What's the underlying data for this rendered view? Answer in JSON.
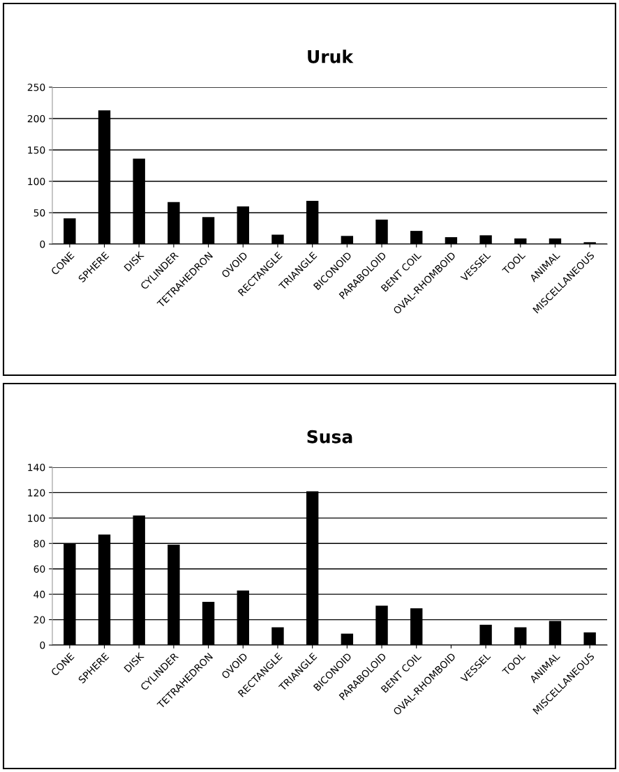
{
  "chart_data": [
    {
      "type": "bar",
      "title": "Uruk",
      "categories": [
        "CONE",
        "SPHERE",
        "DISK",
        "CYLINDER",
        "TETRAHEDRON",
        "OVOID",
        "RECTANGLE",
        "TRIANGLE",
        "BICONOID",
        "PARABOLOID",
        "BENT COIL",
        "OVAL-RHOMBOID",
        "VESSEL",
        "TOOL",
        "ANIMAL",
        "MISCELLANEOUS"
      ],
      "values": [
        41,
        213,
        136,
        67,
        43,
        60,
        15,
        69,
        13,
        39,
        21,
        11,
        14,
        9,
        9,
        3
      ],
      "color": "#000000",
      "ylim": [
        0,
        250
      ],
      "yticks": [
        0,
        50,
        100,
        150,
        200,
        250
      ],
      "grid": "y"
    },
    {
      "type": "bar",
      "title": "Susa",
      "categories": [
        "CONE",
        "SPHERE",
        "DISK",
        "CYLINDER",
        "TETRAHEDRON",
        "OVOID",
        "RECTANGLE",
        "TRIANGLE",
        "BICONOID",
        "PARABOLOID",
        "BENT COIL",
        "OVAL-RHOMBOID",
        "VESSEL",
        "TOOL",
        "ANIMAL",
        "MISCELLANEOUS"
      ],
      "values": [
        80,
        87,
        102,
        79,
        34,
        43,
        14,
        121,
        9,
        31,
        29,
        0,
        16,
        14,
        19,
        10
      ],
      "color": "#000000",
      "ylim": [
        0,
        140
      ],
      "yticks": [
        0,
        20,
        40,
        60,
        80,
        100,
        120,
        140
      ],
      "grid": "y"
    }
  ]
}
